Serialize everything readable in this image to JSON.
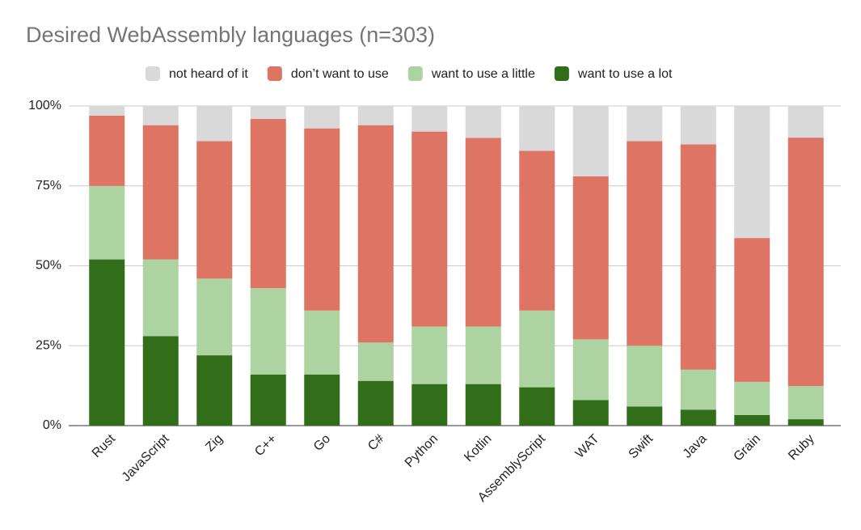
{
  "chart_data": {
    "type": "stacked-bar",
    "title": "Desired WebAssembly languages (n=303)",
    "categories": [
      "Rust",
      "JavaScript",
      "Zig",
      "C++",
      "Go",
      "C#",
      "Python",
      "Kotlin",
      "AssemblyScript",
      "WAT",
      "Swift",
      "Java",
      "Grain",
      "Ruby"
    ],
    "series": [
      {
        "name": "not heard of it",
        "color": "#d9d9d9",
        "values": [
          3,
          6,
          11,
          4,
          7,
          6,
          8,
          10,
          14,
          22,
          11,
          12,
          41.3,
          9.9
        ]
      },
      {
        "name": "don’t want to use",
        "color": "#dd7464",
        "values": [
          22,
          42,
          43,
          53,
          57,
          68,
          61,
          59,
          50,
          51,
          64,
          70.5,
          45,
          77.7
        ]
      },
      {
        "name": "want to use a little",
        "color": "#acd3a0",
        "values": [
          23,
          24,
          24,
          27,
          20,
          12,
          18,
          18,
          24,
          19,
          19,
          12.5,
          10.4,
          10.4
        ]
      },
      {
        "name": "want to use a lot",
        "color": "#326d1a",
        "values": [
          52,
          28,
          22,
          16,
          16,
          14,
          13,
          13,
          12,
          8,
          6,
          5,
          3.3,
          2
        ]
      }
    ],
    "ylim": [
      0,
      100
    ],
    "yticks": [
      {
        "value": 0,
        "label": "0%"
      },
      {
        "value": 25,
        "label": "25%"
      },
      {
        "value": 50,
        "label": "50%"
      },
      {
        "value": 75,
        "label": "75%"
      },
      {
        "value": 100,
        "label": "100%"
      }
    ],
    "grid": true,
    "legend": "top"
  }
}
